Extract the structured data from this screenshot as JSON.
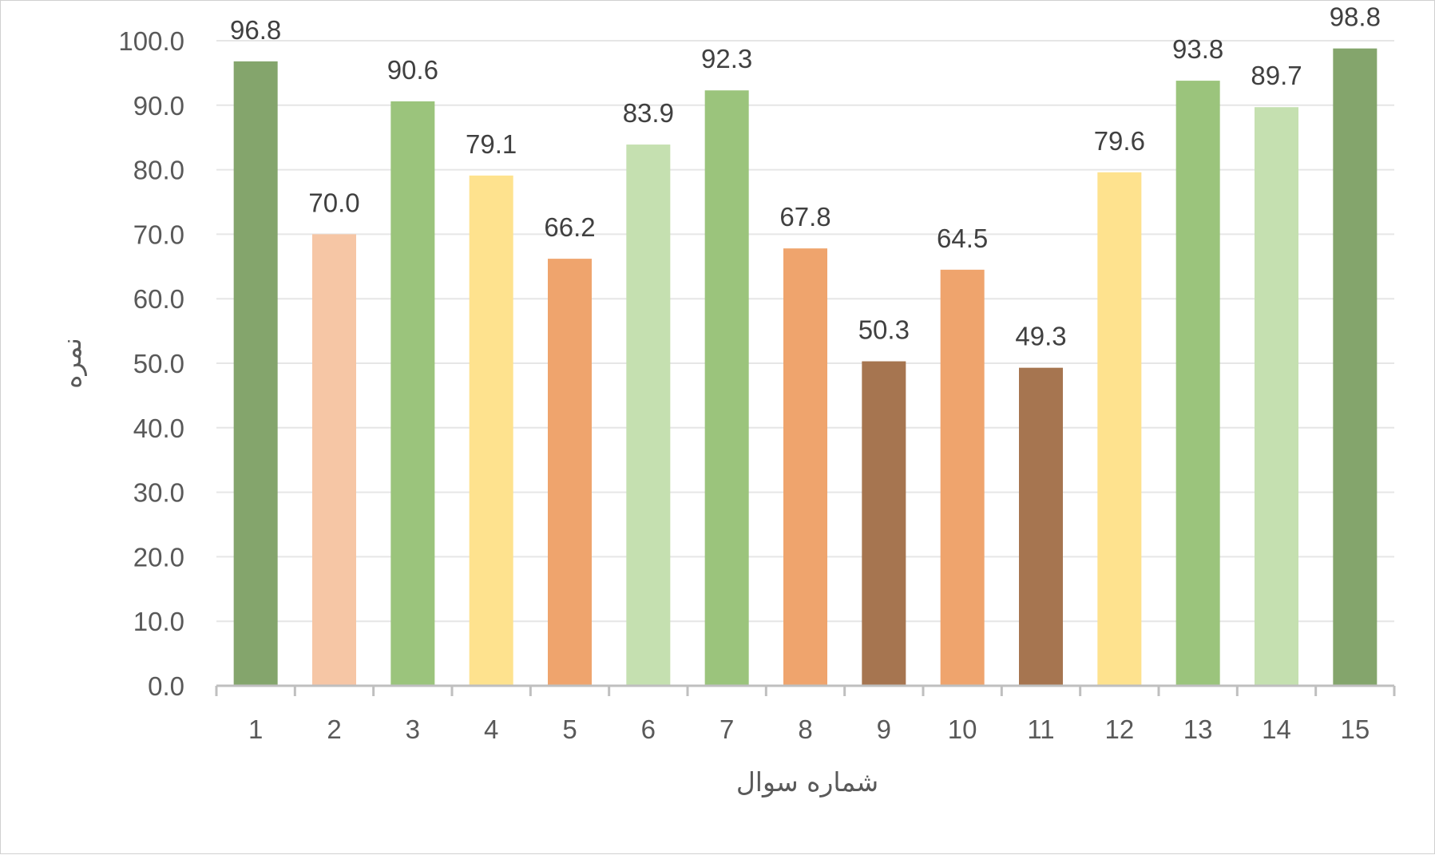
{
  "chart_data": {
    "type": "bar",
    "xlabel": "شماره سوال",
    "ylabel": "نمره",
    "ylim": [
      0,
      100
    ],
    "y_ticks": [
      "0.0",
      "10.0",
      "20.0",
      "30.0",
      "40.0",
      "50.0",
      "60.0",
      "70.0",
      "80.0",
      "90.0",
      "100.0"
    ],
    "grid": true,
    "legend": "none",
    "categories": [
      "1",
      "2",
      "3",
      "4",
      "5",
      "6",
      "7",
      "8",
      "9",
      "10",
      "11",
      "12",
      "13",
      "14",
      "15"
    ],
    "values": [
      96.8,
      70.0,
      90.6,
      79.1,
      66.2,
      83.9,
      92.3,
      67.8,
      50.3,
      64.5,
      49.3,
      79.6,
      93.8,
      89.7,
      98.8
    ],
    "value_labels": [
      "96.8",
      "70.0",
      "90.6",
      "79.1",
      "66.2",
      "83.9",
      "92.3",
      "67.8",
      "50.3",
      "64.5",
      "49.3",
      "79.6",
      "93.8",
      "89.7",
      "98.8"
    ],
    "bar_colors": [
      "#84a56c",
      "#f6c6a5",
      "#9bc47c",
      "#fee28e",
      "#efa46d",
      "#c5e0b0",
      "#9bc47c",
      "#efa46d",
      "#a67550",
      "#efa46d",
      "#a67550",
      "#fee28e",
      "#9bc47c",
      "#c5e0b0",
      "#84a56c"
    ],
    "colors": {
      "grid": "#e6e6e6",
      "axis": "#bfbfbf",
      "text": "#595959",
      "label": "#404040"
    }
  }
}
